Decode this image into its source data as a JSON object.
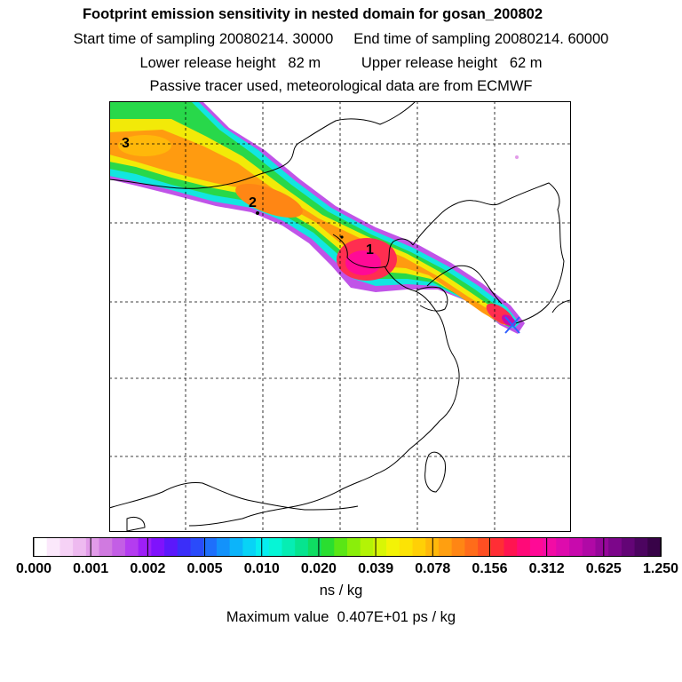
{
  "header": {
    "title": "Footprint emission sensitivity in nested domain for gosan_200802",
    "line2": "Start time of sampling 20080214. 30000     End time of sampling 20080214. 60000",
    "line3": "Lower release height   82 m          Upper release height   62 m",
    "line4": "Passive tracer used, meteorological data are from ECMWF"
  },
  "map": {
    "labels": [
      {
        "text": "1",
        "lon_frac": 0.6,
        "lat_frac": 0.345
      },
      {
        "text": "2",
        "lon_frac": 0.335,
        "lat_frac": 0.235
      },
      {
        "text": "3",
        "lon_frac": 0.04,
        "lat_frac": 0.095
      }
    ],
    "colors": {
      "land_line": "#000000",
      "grid": "#000000"
    }
  },
  "colorbar": {
    "tick_labels": [
      "0.000",
      "0.001",
      "0.002",
      "0.005",
      "0.010",
      "0.020",
      "0.039",
      "0.078",
      "0.156",
      "0.312",
      "0.625",
      "1.250"
    ],
    "colors": [
      "#ffffff",
      "#fbe8fb",
      "#f6d2f6",
      "#eebaf0",
      "#e29be9",
      "#d07ae0",
      "#c35ee5",
      "#b43cf0",
      "#9e1ff8",
      "#7f12fc",
      "#5b18fb",
      "#3b2ef9",
      "#2a4bfa",
      "#1e6ffb",
      "#1392fb",
      "#0cb4fa",
      "#08d3f6",
      "#06eef0",
      "#06f5d6",
      "#06edb3",
      "#06e48f",
      "#0fdd62",
      "#2ade30",
      "#5ae615",
      "#8aee0a",
      "#b3f306",
      "#d8f605",
      "#f3f306",
      "#fce305",
      "#ffd006",
      "#ffb80a",
      "#ff9f10",
      "#ff8614",
      "#ff6c1a",
      "#ff4f22",
      "#ff2e35",
      "#ff1451",
      "#ff0a78",
      "#ff0a96",
      "#f20ca5",
      "#de0bad",
      "#c80aad",
      "#b009a6",
      "#96079a",
      "#7c068a",
      "#630576",
      "#4c0460",
      "#380348"
    ],
    "units": "ns / kg"
  },
  "footer": {
    "max_value": "Maximum value  0.407E+01 ps / kg"
  }
}
